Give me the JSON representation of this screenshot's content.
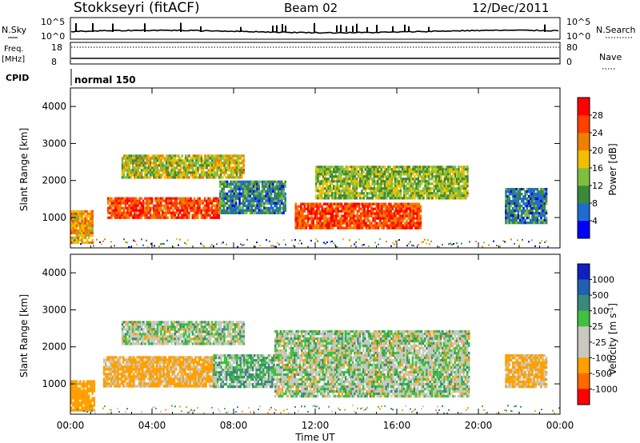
{
  "header": {
    "station": "Stokkseyri (fitACF)",
    "beam": "Beam 02",
    "date": "12/Dec/2011"
  },
  "noise_panel": {
    "left_label": "N.Sky",
    "right_label": "N.Search",
    "left_ticks": [
      "10^5",
      "10^0"
    ],
    "right_ticks": [
      "10^5",
      "10^0"
    ]
  },
  "freq_panel": {
    "left_label_1": "Freq.",
    "left_label_2": "[MHz]",
    "right_label": "Nave",
    "left_ticks": [
      "18",
      "8"
    ],
    "right_ticks": [
      "80",
      "0"
    ]
  },
  "cpid": {
    "label": "CPID",
    "value": "normal 150"
  },
  "colors": {
    "power_scale": [
      "#0000ff",
      "#1f6bd0",
      "#3a8a3a",
      "#7fbf40",
      "#f0c000",
      "#f08000",
      "#ff4000",
      "#ff0000"
    ],
    "velocity_scale": [
      "#ff0000",
      "#ff6a00",
      "#ffa000",
      "#c8c8c0",
      "#c8c8c0",
      "#40c040",
      "#3a8a7a",
      "#2060b0",
      "#1020c0"
    ]
  },
  "chart_data": [
    {
      "type": "heatmap",
      "parameter": "Power",
      "ylabel": "Slant Range [km]",
      "ylim": [
        180,
        4500
      ],
      "yticks": [
        1000,
        2000,
        3000,
        4000
      ],
      "xlim": [
        0,
        24
      ],
      "xticks": [
        0,
        4,
        8,
        12,
        16,
        20,
        24
      ],
      "colorbar": {
        "label": "Power [dB]",
        "ticks": [
          "4",
          "8",
          "12",
          "16",
          "20",
          "24",
          "28"
        ],
        "range": [
          0,
          32
        ]
      },
      "echo_regions": [
        {
          "t0": 0.0,
          "t1": 1.1,
          "r0": 320,
          "r1": 1200,
          "power": 20
        },
        {
          "t0": 1.8,
          "t1": 7.3,
          "r0": 1000,
          "r1": 1550,
          "power": 26
        },
        {
          "t0": 2.5,
          "t1": 8.5,
          "r0": 2100,
          "r1": 2700,
          "power": 16
        },
        {
          "t0": 7.3,
          "t1": 10.5,
          "r0": 1100,
          "r1": 2000,
          "power": 9
        },
        {
          "t0": 11.0,
          "t1": 17.2,
          "r0": 700,
          "r1": 1400,
          "power": 26
        },
        {
          "t0": 12.0,
          "t1": 19.5,
          "r0": 1500,
          "r1": 2400,
          "power": 14
        },
        {
          "t0": 21.3,
          "t1": 23.3,
          "r0": 850,
          "r1": 1800,
          "power": 8
        }
      ]
    },
    {
      "type": "heatmap",
      "parameter": "Velocity",
      "ylabel": "Slant Range [km]",
      "ylim": [
        180,
        4500
      ],
      "yticks": [
        1000,
        2000,
        3000,
        4000
      ],
      "xlim": [
        0,
        24
      ],
      "xticks": [
        0,
        4,
        8,
        12,
        16,
        20,
        24
      ],
      "xlabel": "Time UT",
      "xtick_labels": [
        "00:00",
        "04:00",
        "08:00",
        "12:00",
        "16:00",
        "20:00",
        "00:00"
      ],
      "colorbar": {
        "label": "Velocity [m s^-1]",
        "ticks": [
          "1000",
          "500",
          "100",
          "25",
          "-25",
          "-100",
          "-500",
          "-1000"
        ]
      },
      "echo_regions": [
        {
          "t0": 0.0,
          "t1": 1.2,
          "r0": 320,
          "r1": 1100,
          "velocity": -300
        },
        {
          "t0": 1.6,
          "t1": 7.0,
          "r0": 950,
          "r1": 1750,
          "velocity": -150
        },
        {
          "t0": 2.5,
          "t1": 8.5,
          "r0": 2100,
          "r1": 2700,
          "velocity": 0
        },
        {
          "t0": 7.0,
          "t1": 10.0,
          "r0": 950,
          "r1": 1800,
          "velocity": 60
        },
        {
          "t0": 10.0,
          "t1": 19.5,
          "r0": 700,
          "r1": 2450,
          "velocity": 0
        },
        {
          "t0": 21.3,
          "t1": 23.3,
          "r0": 900,
          "r1": 1800,
          "velocity": -150
        }
      ]
    }
  ]
}
